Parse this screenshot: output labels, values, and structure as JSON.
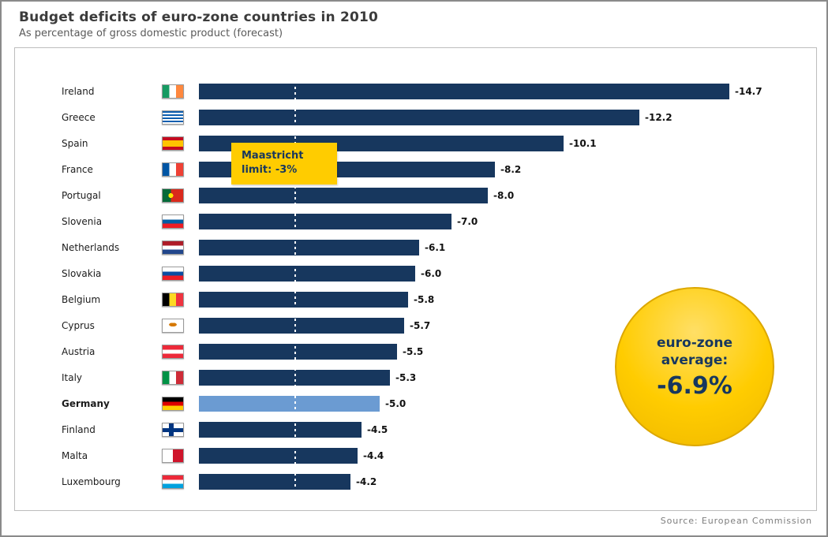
{
  "header": {
    "title": "Budget deficits of euro-zone countries in 2010",
    "subtitle": "As percentage of gross domestic product (forecast)"
  },
  "chart_data": {
    "type": "bar",
    "orientation": "horizontal",
    "title": "Budget deficits of euro-zone countries in 2010",
    "subtitle": "As percentage of gross domestic product (forecast)",
    "xlim": [
      0,
      -15
    ],
    "grid": false,
    "legend": "none",
    "categories": [
      "Ireland",
      "Greece",
      "Spain",
      "France",
      "Portugal",
      "Slovenia",
      "Netherlands",
      "Slovakia",
      "Belgium",
      "Cyprus",
      "Austria",
      "Italy",
      "Germany",
      "Finland",
      "Malta",
      "Luxembourg"
    ],
    "values": [
      -14.7,
      -12.2,
      -10.1,
      -8.2,
      -8.0,
      -7.0,
      -6.1,
      -6.0,
      -5.8,
      -5.7,
      -5.5,
      -5.3,
      -5.0,
      -4.5,
      -4.4,
      -4.2
    ],
    "value_labels": [
      "-14.7",
      "-12.2",
      "-10.1",
      "-8.2",
      "-8.0",
      "-7.0",
      "-6.1",
      "-6.0",
      "-5.8",
      "-5.7",
      "-5.5",
      "-5.3",
      "-5.0",
      "-4.5",
      "-4.4",
      "-4.2"
    ],
    "flag_icons": [
      "ireland-flag-icon",
      "greece-flag-icon",
      "spain-flag-icon",
      "france-flag-icon",
      "portugal-flag-icon",
      "slovenia-flag-icon",
      "netherlands-flag-icon",
      "slovakia-flag-icon",
      "belgium-flag-icon",
      "cyprus-flag-icon",
      "austria-flag-icon",
      "italy-flag-icon",
      "germany-flag-icon",
      "finland-flag-icon",
      "malta-flag-icon",
      "luxembourg-flag-icon"
    ],
    "highlight_country": "Germany",
    "colors": {
      "bar": "#17375e",
      "highlight_bar": "#6b9bd2",
      "annotation_yellow": "#ffcc00",
      "text_navy": "#17375e"
    },
    "annotations": {
      "maastricht_limit": {
        "line1": "Maastricht",
        "line2": "limit: -3%",
        "value": -3
      },
      "eurozone_average": {
        "line1": "euro-zone",
        "line2": "average:",
        "value_label": "-6.9%",
        "value": -6.9
      }
    },
    "source": "Source: European Commission"
  }
}
